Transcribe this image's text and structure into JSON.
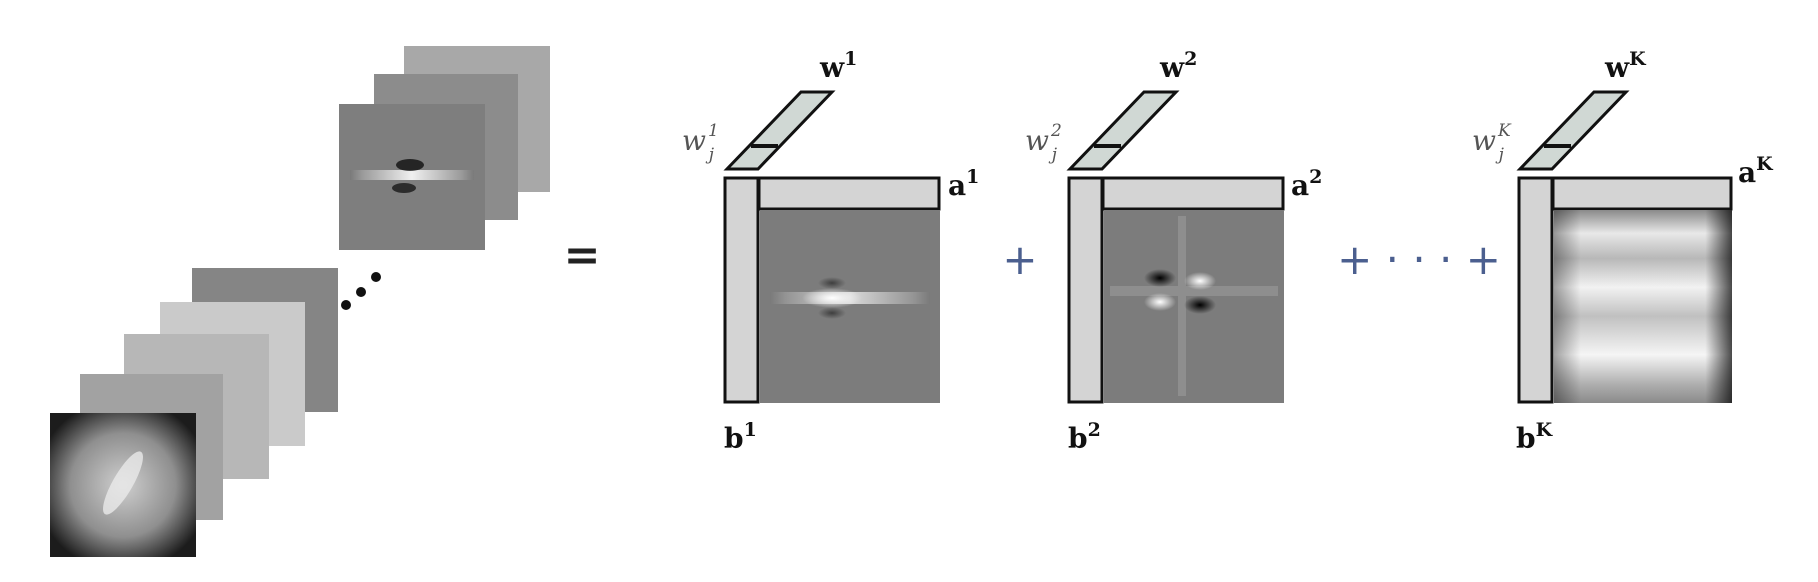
{
  "equation": {
    "equals": "=",
    "plus": "+",
    "plus_dots_plus": "+ · · · +"
  },
  "terms": [
    {
      "w_base": "w",
      "w_sup": "1",
      "wj_base": "w",
      "wj_sup": "1",
      "wj_sub": "j",
      "a_base": "a",
      "a_sup": "1",
      "b_base": "b",
      "b_sup": "1"
    },
    {
      "w_base": "w",
      "w_sup": "2",
      "wj_base": "w",
      "wj_sup": "2",
      "wj_sub": "j",
      "a_base": "a",
      "a_sup": "2",
      "b_base": "b",
      "b_sup": "2"
    },
    {
      "w_base": "w",
      "w_sup": "K",
      "wj_base": "w",
      "wj_sup": "K",
      "wj_sub": "j",
      "a_base": "a",
      "a_sup": "K",
      "b_base": "b",
      "b_sup": "K"
    }
  ],
  "colors": {
    "bar_fill": "#d4d4d4",
    "w_bar_fill": "#d0d8d4",
    "matrix_bg": "#7c7c7c",
    "stroke": "#111111",
    "plus": "#4b5f8f"
  }
}
